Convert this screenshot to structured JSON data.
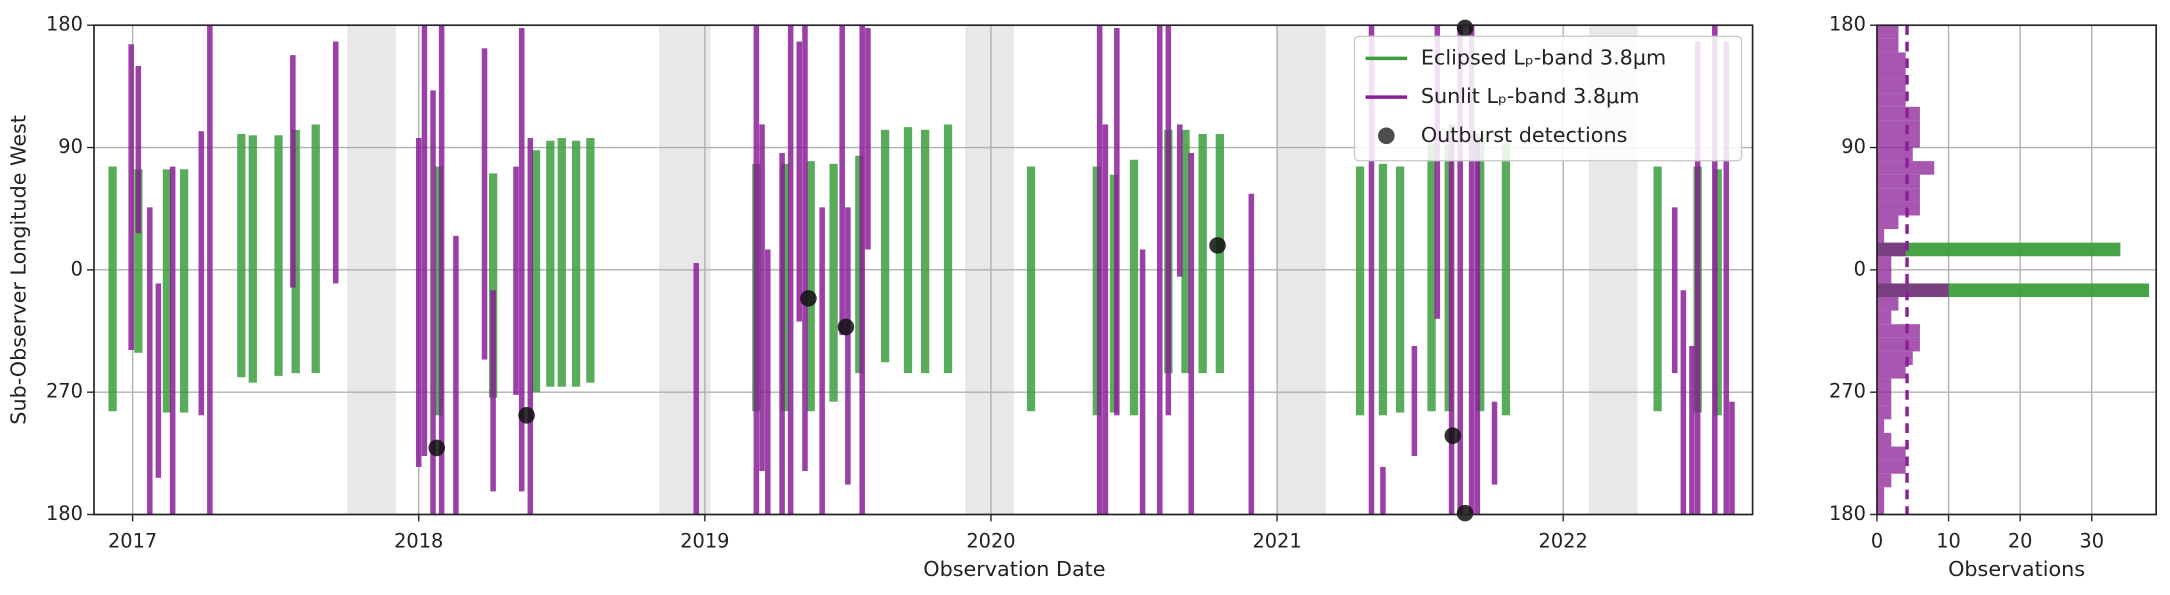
{
  "chart_data": [
    {
      "type": "range",
      "xlabel": "Observation Date",
      "ylabel": "Sub-Observer Longitude West",
      "xlim": [
        2016.865,
        2022.662
      ],
      "xticks": [
        2017,
        2018,
        2019,
        2020,
        2021,
        2022
      ],
      "ylim": [
        -180,
        180
      ],
      "yticks": [
        {
          "value": -180,
          "label": "180"
        },
        {
          "value": -90,
          "label": "270"
        },
        0,
        90,
        180
      ],
      "grid": true,
      "legend": "upper right",
      "shaded_spans": [
        [
          2017.75,
          2017.92
        ],
        [
          2018.84,
          2019.02
        ],
        [
          2019.91,
          2020.08
        ],
        [
          2021.0,
          2021.17
        ],
        [
          2022.09,
          2022.26
        ]
      ],
      "series": [
        {
          "name": "Eclipsed Lₚ-band 3.8μm",
          "mark": "range",
          "color": "#3c9e3c",
          "x": [
            2016.93,
            2017.02,
            2017.12,
            2017.18,
            2017.38,
            2017.42,
            2017.51,
            2017.57,
            2017.64,
            2018.07,
            2018.26,
            2018.41,
            2018.46,
            2018.5,
            2018.55,
            2018.6,
            2019.18,
            2019.28,
            2019.37,
            2019.45,
            2019.54,
            2019.63,
            2019.71,
            2019.77,
            2019.85,
            2020.14,
            2020.37,
            2020.43,
            2020.5,
            2020.62,
            2020.68,
            2020.74,
            2020.8,
            2021.29,
            2021.37,
            2021.43,
            2021.54,
            2021.6,
            2021.71,
            2021.8,
            2022.33,
            2022.47,
            2022.54
          ],
          "high": [
            76,
            74,
            74,
            74,
            100,
            99,
            99,
            103,
            107,
            76,
            71,
            88,
            95,
            97,
            95,
            97,
            78,
            78,
            80,
            78,
            84,
            103,
            105,
            103,
            107,
            76,
            76,
            70,
            81,
            103,
            103,
            100,
            100,
            76,
            78,
            76,
            93,
            93,
            100,
            93,
            76,
            76,
            74
          ],
          "low": [
            -104,
            -61,
            -105,
            -105,
            -79,
            -83,
            -78,
            -76,
            -76,
            -107,
            -94,
            -90,
            -86,
            -86,
            -86,
            -83,
            -104,
            -104,
            -104,
            -97,
            -76,
            -68,
            -76,
            -76,
            -76,
            -104,
            -107,
            -105,
            -107,
            -76,
            -76,
            -76,
            -76,
            -107,
            -107,
            -105,
            -104,
            -104,
            -104,
            -107,
            -104,
            -105,
            -107
          ]
        },
        {
          "name": "Sunlit Lₚ-band 3.8μm",
          "mark": "range",
          "color": "#8a1f96",
          "x": [
            2016.995,
            2017.02,
            2017.06,
            2017.09,
            2017.14,
            2017.24,
            2017.27,
            2017.56,
            2017.71,
            2018.0,
            2018.02,
            2018.05,
            2018.08,
            2018.13,
            2018.23,
            2018.26,
            2018.34,
            2018.36,
            2018.39,
            2018.97,
            2019.18,
            2019.2,
            2019.22,
            2019.27,
            2019.3,
            2019.33,
            2019.35,
            2019.41,
            2019.48,
            2019.5,
            2019.55,
            2019.57,
            2020.38,
            2020.4,
            2020.44,
            2020.53,
            2020.59,
            2020.62,
            2020.66,
            2020.7,
            2020.91,
            2021.33,
            2021.37,
            2021.48,
            2021.56,
            2021.61,
            2021.64,
            2021.68,
            2021.7,
            2021.76,
            2022.39,
            2022.42,
            2022.45,
            2022.47,
            2022.53,
            2022.57,
            2022.59
          ],
          "high": [
            166,
            150,
            46,
            -10,
            76,
            102,
            180,
            158,
            168,
            97,
            180,
            132,
            180,
            25,
            163,
            -15,
            76,
            178,
            97,
            5,
            180,
            107,
            15,
            86,
            180,
            168,
            180,
            46,
            180,
            46,
            180,
            178,
            180,
            107,
            178,
            15,
            180,
            180,
            107,
            86,
            56,
            180,
            -145,
            -56,
            180,
            107,
            180,
            180,
            97,
            -97,
            46,
            -15,
            -56,
            168,
            180,
            168,
            -97
          ],
          "low": [
            -59,
            27,
            -180,
            -153,
            -180,
            -107,
            -180,
            -13,
            -10,
            -145,
            -137,
            -180,
            -180,
            -180,
            -66,
            -163,
            -92,
            -163,
            -180,
            -180,
            -180,
            -148,
            -180,
            -180,
            -180,
            -38,
            -148,
            -180,
            -48,
            -158,
            -180,
            15,
            -180,
            -180,
            -107,
            -180,
            -180,
            -107,
            -5,
            -180,
            -180,
            -180,
            -180,
            -137,
            -36,
            -180,
            -180,
            -180,
            -180,
            -158,
            -76,
            -180,
            -180,
            -180,
            -180,
            -180,
            -180
          ]
        },
        {
          "name": "Outburst detections",
          "mark": "point",
          "color": "#111111",
          "x": [
            2018.063,
            2018.377,
            2019.362,
            2019.493,
            2020.792,
            2021.614,
            2021.657,
            2021.657
          ],
          "values": [
            -131,
            -107,
            -21,
            -42,
            18,
            -122,
            178,
            -179
          ]
        }
      ]
    },
    {
      "type": "histogram_h",
      "xlabel": "Observations",
      "xlim": [
        0,
        39
      ],
      "xticks": [
        0,
        10,
        20,
        30
      ],
      "ylim": [
        -180,
        180
      ],
      "yticks": [
        {
          "value": -180,
          "label": "180"
        },
        {
          "value": -90,
          "label": "270"
        },
        0,
        90,
        180
      ],
      "grid": true,
      "bins": [
        -180,
        -170,
        -160,
        -150,
        -140,
        -130,
        -120,
        -110,
        -100,
        -90,
        -80,
        -70,
        -60,
        -50,
        -40,
        -30,
        -20,
        -10,
        0,
        10,
        20,
        30,
        40,
        50,
        60,
        70,
        80,
        90,
        100,
        110,
        120,
        130,
        140,
        150,
        160,
        170,
        180
      ],
      "series": [
        {
          "color": "#3c9e3c",
          "values": [
            0,
            0,
            0,
            0,
            0,
            0,
            0,
            0,
            0,
            0,
            0,
            0,
            0,
            0,
            0,
            0,
            38,
            0,
            0,
            34,
            0,
            0,
            0,
            0,
            0,
            0,
            0,
            0,
            0,
            0,
            0,
            0,
            0,
            0,
            0,
            0
          ]
        },
        {
          "color": "#8a1f96",
          "values": [
            1,
            1,
            2,
            4,
            4,
            2,
            1,
            2,
            2,
            2,
            4,
            5,
            6,
            6,
            2,
            3,
            10,
            2,
            2,
            4,
            1,
            3,
            6,
            6,
            6,
            8,
            5,
            6,
            6,
            6,
            4,
            4,
            4,
            4,
            3,
            3
          ]
        }
      ],
      "reference_line": 4.2,
      "reference_color": "#8a1f96"
    }
  ]
}
